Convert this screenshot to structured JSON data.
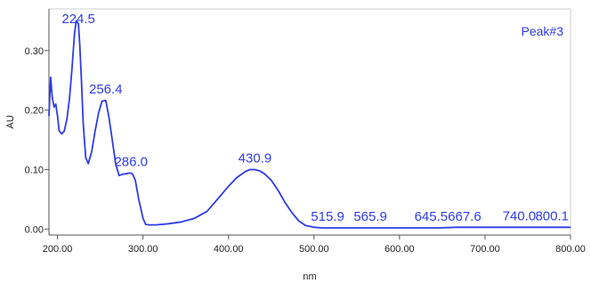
{
  "chart_data": {
    "type": "line",
    "title": "",
    "xlabel": "nm",
    "ylabel": "AU",
    "legend_label": "Peak#3",
    "legend_position": "top-right",
    "xlim": [
      190,
      800
    ],
    "ylim": [
      -0.01,
      0.37
    ],
    "grid": false,
    "line_color": "#2f3ce8",
    "label_color": "#2f3ce8",
    "x_ticks": [
      200,
      300,
      400,
      500,
      600,
      700,
      800
    ],
    "x_tick_labels": [
      "200.00",
      "300.00",
      "400.00",
      "500.00",
      "600.00",
      "700.00",
      "800.00"
    ],
    "y_ticks": [
      0.0,
      0.1,
      0.2,
      0.3
    ],
    "y_tick_labels": [
      "0.00",
      "0.10",
      "0.20",
      "0.30"
    ],
    "series": [
      {
        "x": [
          190,
          192,
          194,
          196,
          198,
          200,
          202,
          205,
          208,
          211,
          214,
          217,
          220,
          222,
          224.5,
          226,
          228,
          230,
          233,
          236,
          240,
          244,
          248,
          252,
          256.4,
          260,
          264,
          268,
          272,
          276,
          280,
          283,
          286,
          288,
          291,
          295,
          300,
          303,
          307,
          315,
          330,
          345,
          360,
          375,
          390,
          400,
          410,
          420,
          425,
          430.9,
          436,
          442,
          450,
          458,
          466,
          474,
          482,
          490,
          500,
          510,
          515.9,
          540,
          565.9,
          600,
          645.5,
          667.6,
          700,
          740,
          770,
          800.1
        ],
        "y": [
          0.19,
          0.255,
          0.22,
          0.205,
          0.21,
          0.19,
          0.165,
          0.16,
          0.165,
          0.185,
          0.22,
          0.27,
          0.33,
          0.35,
          0.345,
          0.31,
          0.25,
          0.18,
          0.12,
          0.11,
          0.13,
          0.165,
          0.195,
          0.215,
          0.216,
          0.19,
          0.15,
          0.11,
          0.09,
          0.092,
          0.093,
          0.094,
          0.094,
          0.092,
          0.082,
          0.05,
          0.018,
          0.008,
          0.007,
          0.007,
          0.009,
          0.012,
          0.018,
          0.03,
          0.055,
          0.072,
          0.087,
          0.097,
          0.1,
          0.1,
          0.098,
          0.093,
          0.082,
          0.065,
          0.045,
          0.028,
          0.014,
          0.006,
          0.003,
          0.002,
          0.002,
          0.002,
          0.002,
          0.002,
          0.002,
          0.003,
          0.003,
          0.003,
          0.003,
          0.003
        ]
      }
    ],
    "peak_labels": [
      {
        "text": "224.5",
        "x": 224.5,
        "y": 0.35
      },
      {
        "text": "256.4",
        "x": 256.4,
        "y": 0.216
      },
      {
        "text": "286.0",
        "x": 286.0,
        "y": 0.094
      },
      {
        "text": "430.9",
        "x": 430.9,
        "y": 0.1
      },
      {
        "text": "515.9",
        "x": 515.9,
        "y": 0.002
      },
      {
        "text": "565.9",
        "x": 565.9,
        "y": 0.002
      },
      {
        "text": "645.5667.6",
        "x": 656.5,
        "y": 0.002
      },
      {
        "text": "740.0",
        "x": 740.0,
        "y": 0.003
      },
      {
        "text": "800.1",
        "x": 800.1,
        "y": 0.003
      }
    ]
  }
}
